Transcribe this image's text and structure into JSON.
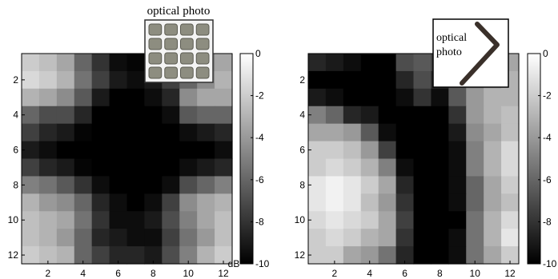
{
  "chart_data": [
    {
      "type": "heatmap",
      "colormap": "gray",
      "xticks": [
        2,
        4,
        6,
        8,
        10,
        12
      ],
      "yticks": [
        2,
        4,
        6,
        8,
        10,
        12
      ],
      "xlim": [
        0.5,
        12.5
      ],
      "ylim": [
        0.5,
        12.5
      ],
      "colorbar": {
        "range": [
          -10,
          0
        ],
        "ticks": [
          0,
          -2,
          -4,
          -6,
          -8,
          -10
        ],
        "unit": "dB"
      },
      "inset": {
        "label_lines": [
          "optical photo"
        ],
        "picture": "grid-photo"
      },
      "values": [
        [
          -2.0,
          -2.5,
          -3.5,
          -6.0,
          -8.0,
          -9.5,
          -9.8,
          -9.5,
          -8.5,
          -7.0,
          -5.0,
          -3.5
        ],
        [
          -1.5,
          -2.0,
          -3.0,
          -5.5,
          -7.5,
          -9.0,
          -9.5,
          -9.0,
          -7.5,
          -6.0,
          -4.5,
          -3.0
        ],
        [
          -3.0,
          -3.5,
          -4.5,
          -6.5,
          -9.0,
          -10.0,
          -10.0,
          -9.5,
          -8.5,
          -4.5,
          -3.5,
          -3.5
        ],
        [
          -6.0,
          -7.0,
          -7.0,
          -8.5,
          -10.0,
          -10.0,
          -10.0,
          -10.0,
          -9.5,
          -6.5,
          -6.0,
          -6.0
        ],
        [
          -7.5,
          -8.5,
          -9.0,
          -9.8,
          -10.0,
          -10.0,
          -10.0,
          -10.0,
          -10.0,
          -9.5,
          -9.0,
          -8.5
        ],
        [
          -9.0,
          -9.5,
          -10.0,
          -10.0,
          -10.0,
          -10.0,
          -10.0,
          -10.0,
          -10.0,
          -10.0,
          -10.0,
          -9.5
        ],
        [
          -7.5,
          -8.5,
          -9.0,
          -9.8,
          -10.0,
          -10.0,
          -10.0,
          -10.0,
          -10.0,
          -9.5,
          -9.0,
          -8.5
        ],
        [
          -5.0,
          -5.5,
          -6.5,
          -8.0,
          -9.5,
          -10.0,
          -10.0,
          -10.0,
          -9.5,
          -7.0,
          -6.0,
          -5.0
        ],
        [
          -3.0,
          -4.0,
          -4.5,
          -6.0,
          -8.5,
          -9.5,
          -10.0,
          -9.5,
          -7.5,
          -4.5,
          -3.5,
          -3.0
        ],
        [
          -2.5,
          -3.0,
          -3.5,
          -5.5,
          -8.0,
          -9.5,
          -9.5,
          -9.0,
          -7.0,
          -5.0,
          -3.5,
          -2.5
        ],
        [
          -2.5,
          -3.0,
          -4.0,
          -6.0,
          -8.5,
          -9.0,
          -9.5,
          -9.5,
          -7.5,
          -5.5,
          -4.0,
          -2.5
        ],
        [
          -2.0,
          -2.5,
          -3.0,
          -6.0,
          -7.5,
          -8.5,
          -8.5,
          -9.0,
          -7.0,
          -5.0,
          -3.0,
          -2.0
        ]
      ]
    },
    {
      "type": "heatmap",
      "colormap": "gray",
      "xticks": [
        2,
        4,
        6,
        8,
        10,
        12
      ],
      "yticks": [
        2,
        4,
        6,
        8,
        10,
        12
      ],
      "xlim": [
        0.5,
        12.5
      ],
      "ylim": [
        0.5,
        12.5
      ],
      "colorbar": {
        "range": [
          -10,
          0
        ],
        "ticks": [
          0,
          -2,
          -4,
          -6,
          -8,
          -10
        ],
        "unit": ""
      },
      "inset": {
        "label_lines": [
          "optical",
          "photo"
        ],
        "picture": "bent-wire-photo"
      },
      "values": [
        [
          -8.5,
          -9.0,
          -9.5,
          -10.0,
          -10.0,
          -7.0,
          -6.5,
          -7.5,
          -6.5,
          -5.0,
          -4.0,
          -3.5
        ],
        [
          -10.0,
          -10.0,
          -10.0,
          -10.0,
          -10.0,
          -8.5,
          -7.0,
          -8.5,
          -6.5,
          -4.5,
          -3.5,
          -3.0
        ],
        [
          -9.0,
          -9.5,
          -10.0,
          -10.0,
          -10.0,
          -9.5,
          -8.0,
          -9.5,
          -6.5,
          -4.0,
          -3.0,
          -3.0
        ],
        [
          -5.0,
          -6.0,
          -8.5,
          -9.0,
          -10.0,
          -10.0,
          -10.0,
          -10.0,
          -8.0,
          -4.0,
          -3.0,
          -2.5
        ],
        [
          -3.5,
          -3.5,
          -4.0,
          -6.5,
          -9.5,
          -10.0,
          -10.0,
          -10.0,
          -9.0,
          -4.5,
          -3.5,
          -2.5
        ],
        [
          -2.0,
          -2.0,
          -2.5,
          -4.0,
          -7.5,
          -10.0,
          -10.0,
          -10.0,
          -9.5,
          -5.0,
          -3.0,
          -1.5
        ],
        [
          -2.0,
          -1.5,
          -2.0,
          -3.0,
          -5.0,
          -9.5,
          -10.0,
          -10.0,
          -9.5,
          -5.0,
          -3.0,
          -1.5
        ],
        [
          -1.0,
          -0.5,
          -1.0,
          -2.0,
          -3.5,
          -8.5,
          -10.0,
          -10.0,
          -9.5,
          -6.0,
          -3.5,
          -2.0
        ],
        [
          -1.0,
          -0.5,
          -1.0,
          -2.5,
          -4.0,
          -8.0,
          -10.0,
          -10.0,
          -9.5,
          -6.0,
          -3.5,
          -2.5
        ],
        [
          -1.5,
          -1.0,
          -1.5,
          -2.0,
          -3.5,
          -7.5,
          -10.0,
          -10.0,
          -10.0,
          -5.5,
          -3.0,
          -1.5
        ],
        [
          -2.0,
          -1.5,
          -2.0,
          -3.0,
          -3.5,
          -8.0,
          -10.0,
          -10.0,
          -9.5,
          -5.5,
          -3.0,
          -1.0
        ],
        [
          -2.0,
          -2.0,
          -3.5,
          -4.0,
          -5.5,
          -8.5,
          -10.0,
          -10.0,
          -9.5,
          -5.5,
          -3.5,
          -2.0
        ]
      ]
    }
  ]
}
